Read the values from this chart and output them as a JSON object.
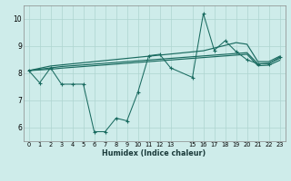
{
  "xlabel": "Humidex (Indice chaleur)",
  "bg_color": "#ceecea",
  "grid_color": "#aed4d0",
  "line_color": "#1a6b60",
  "xlim_min": -0.5,
  "xlim_max": 23.5,
  "ylim_min": 5.5,
  "ylim_max": 10.5,
  "xtick_pos": [
    0,
    1,
    2,
    3,
    4,
    5,
    6,
    7,
    8,
    9,
    10,
    11,
    12,
    13,
    15,
    16,
    17,
    18,
    19,
    20,
    21,
    22,
    23
  ],
  "xtick_labels": [
    "0",
    "1",
    "2",
    "3",
    "4",
    "5",
    "6",
    "7",
    "8",
    "9",
    "10",
    "11",
    "12",
    "13",
    "15",
    "16",
    "17",
    "18",
    "19",
    "20",
    "21",
    "22",
    "23"
  ],
  "ytick_pos": [
    6,
    7,
    8,
    9,
    10
  ],
  "ytick_labels": [
    "6",
    "7",
    "8",
    "9",
    "10"
  ],
  "raw_x": [
    0,
    1,
    2,
    3,
    4,
    5,
    6,
    7,
    8,
    9,
    10,
    11,
    12,
    13,
    15,
    16,
    17,
    18,
    19,
    20,
    21,
    22,
    23
  ],
  "raw_y": [
    8.1,
    7.65,
    8.2,
    7.6,
    7.6,
    7.6,
    5.85,
    5.85,
    6.35,
    6.25,
    7.3,
    8.65,
    8.7,
    8.2,
    7.85,
    10.2,
    8.85,
    9.2,
    8.8,
    8.5,
    8.35,
    8.35,
    8.6
  ],
  "sma_x": [
    0,
    2,
    3,
    4,
    5,
    6,
    7,
    8,
    9,
    10,
    11,
    12,
    13,
    15,
    16,
    17,
    18,
    19,
    20,
    21,
    22,
    23
  ],
  "sma1_y": [
    8.1,
    8.2,
    8.25,
    8.28,
    8.31,
    8.34,
    8.37,
    8.4,
    8.43,
    8.46,
    8.49,
    8.52,
    8.55,
    8.61,
    8.64,
    8.67,
    8.7,
    8.73,
    8.76,
    8.35,
    8.37,
    8.55
  ],
  "sma2_y": [
    8.1,
    8.27,
    8.31,
    8.35,
    8.39,
    8.43,
    8.47,
    8.51,
    8.55,
    8.59,
    8.63,
    8.67,
    8.71,
    8.79,
    8.83,
    8.93,
    9.03,
    9.13,
    9.07,
    8.43,
    8.43,
    8.63
  ],
  "sma3_y": [
    8.1,
    8.15,
    8.19,
    8.22,
    8.25,
    8.28,
    8.31,
    8.34,
    8.37,
    8.4,
    8.43,
    8.46,
    8.49,
    8.55,
    8.58,
    8.61,
    8.64,
    8.67,
    8.7,
    8.28,
    8.3,
    8.48
  ]
}
